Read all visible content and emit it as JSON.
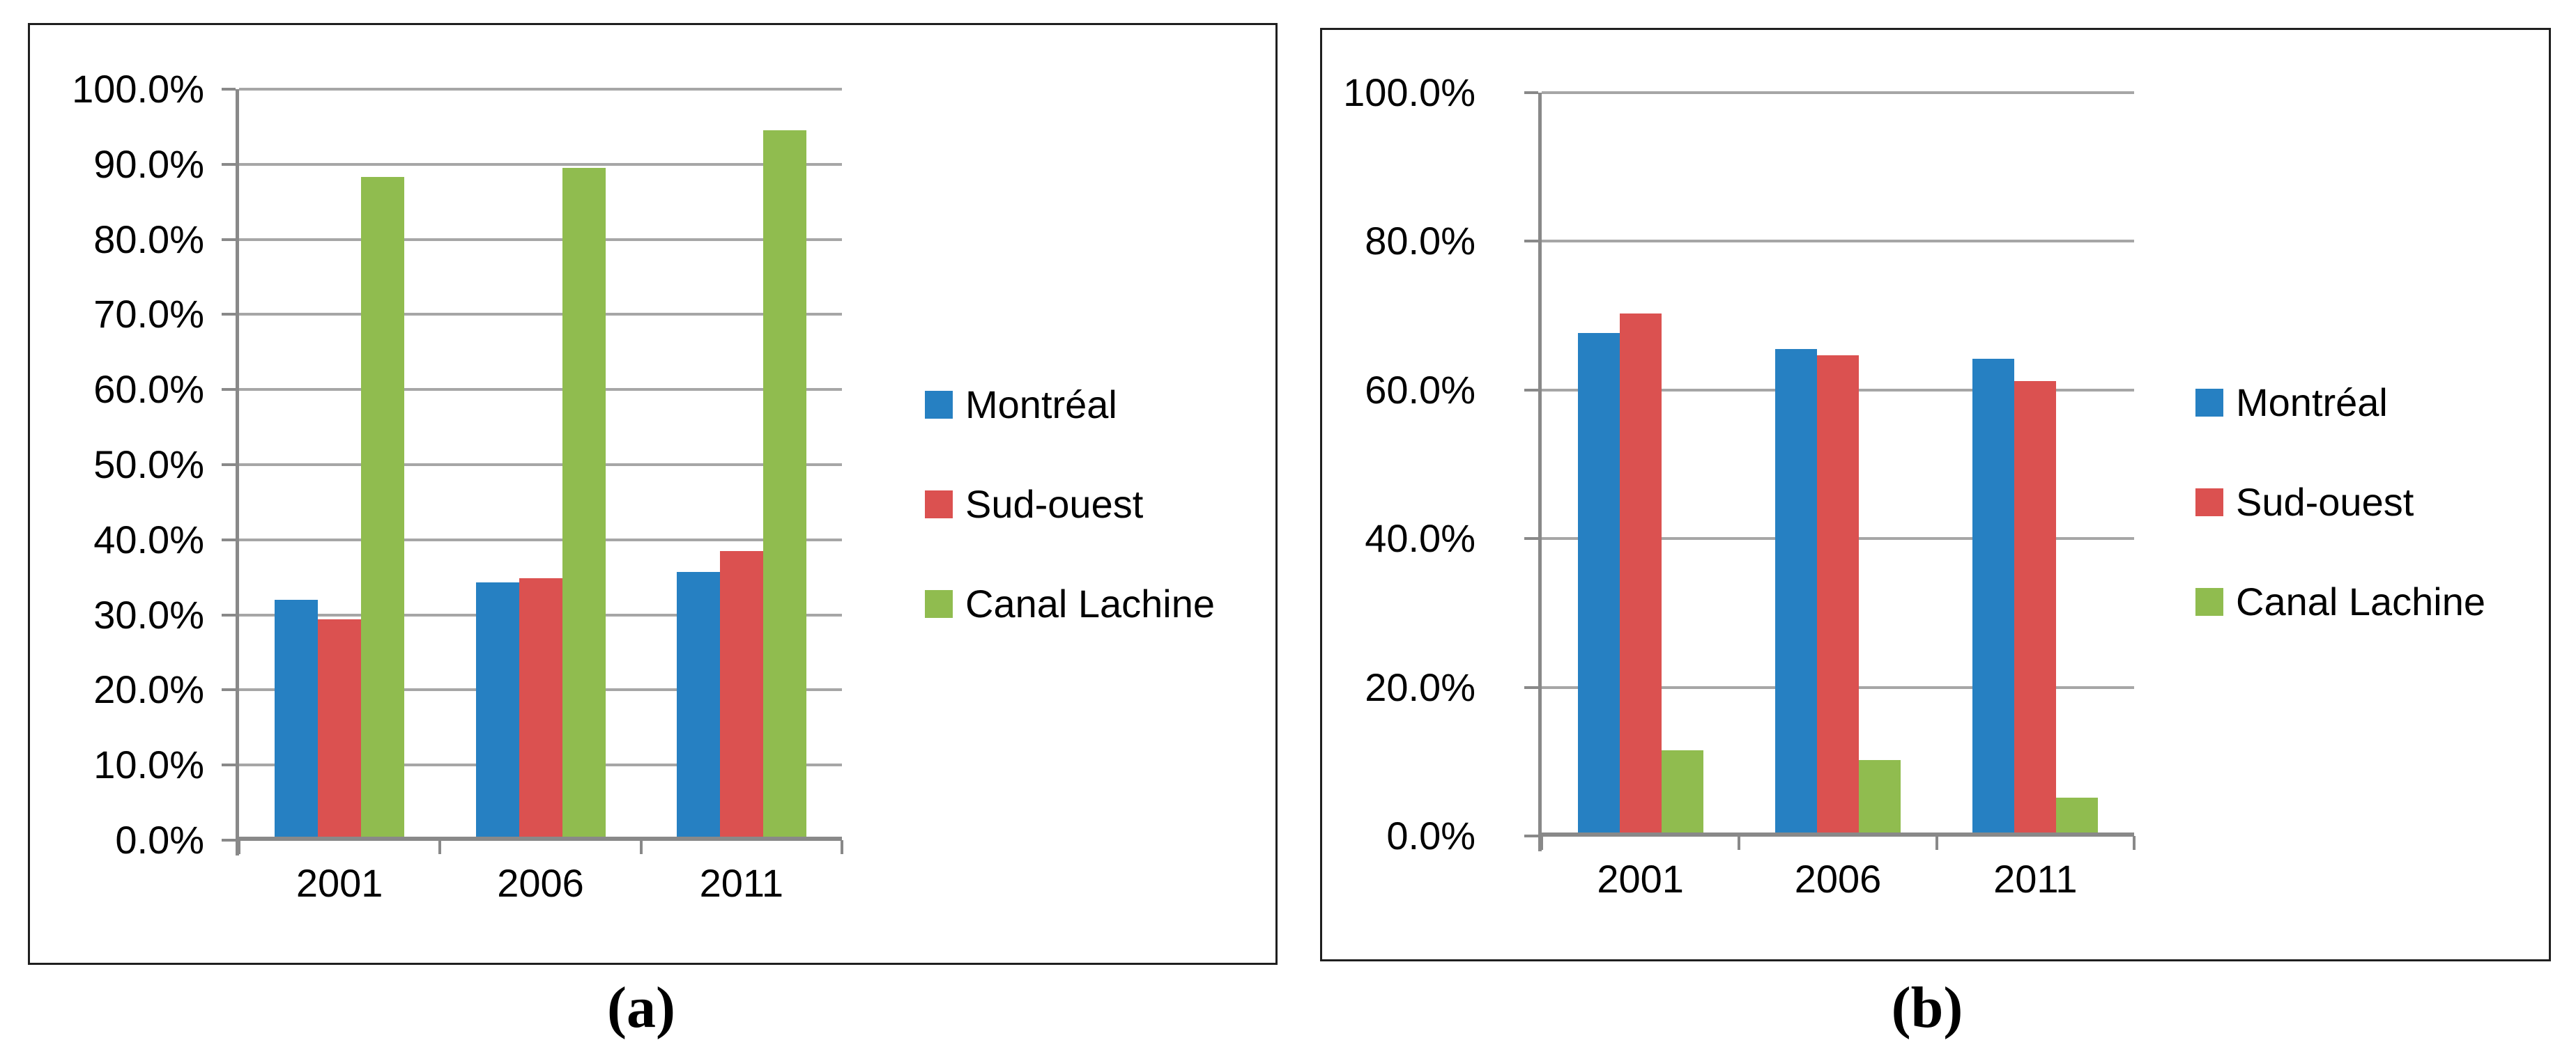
{
  "figure": {
    "panels": [
      {
        "caption": "(a)"
      },
      {
        "caption": "(b)"
      }
    ]
  },
  "colors": {
    "montreal_blue": "#2680C2",
    "sud_ouest_red": "#DB5150",
    "canal_lachine_green": "#90BC4F",
    "gridline_gray": "#A6A6A6",
    "axis_gray": "#898989",
    "panel_border": "#1F1F1F",
    "text_black": "#000000"
  },
  "chart_data": [
    {
      "type": "bar",
      "title": "",
      "xlabel": "",
      "ylabel": "",
      "categories": [
        "2001",
        "2006",
        "2011"
      ],
      "series": [
        {
          "name": "Montréal",
          "color": "#2680C2",
          "values": [
            32.0,
            34.3,
            35.7
          ]
        },
        {
          "name": "Sud-ouest",
          "color": "#DB5150",
          "values": [
            29.4,
            34.9,
            38.5
          ]
        },
        {
          "name": "Canal Lachine",
          "color": "#90BC4F",
          "values": [
            88.3,
            89.5,
            94.5
          ]
        }
      ],
      "ylim": [
        0,
        100
      ],
      "y_tick_step": 10,
      "y_tick_labels": [
        "0.0%",
        "10.0%",
        "20.0%",
        "30.0%",
        "40.0%",
        "50.0%",
        "60.0%",
        "70.0%",
        "80.0%",
        "90.0%",
        "100.0%"
      ],
      "grid": true,
      "legend_position": "right"
    },
    {
      "type": "bar",
      "title": "",
      "xlabel": "",
      "ylabel": "",
      "categories": [
        "2001",
        "2006",
        "2011"
      ],
      "series": [
        {
          "name": "Montréal",
          "color": "#2680C2",
          "values": [
            67.7,
            65.5,
            64.2
          ]
        },
        {
          "name": "Sud-ouest",
          "color": "#DB5150",
          "values": [
            70.3,
            64.7,
            61.2
          ]
        },
        {
          "name": "Canal Lachine",
          "color": "#90BC4F",
          "values": [
            11.5,
            10.2,
            5.2
          ]
        }
      ],
      "ylim": [
        0,
        100
      ],
      "y_tick_step": 20,
      "y_tick_labels": [
        "0.0%",
        "20.0%",
        "40.0%",
        "60.0%",
        "80.0%",
        "100.0%"
      ],
      "grid": true,
      "legend_position": "right"
    }
  ]
}
